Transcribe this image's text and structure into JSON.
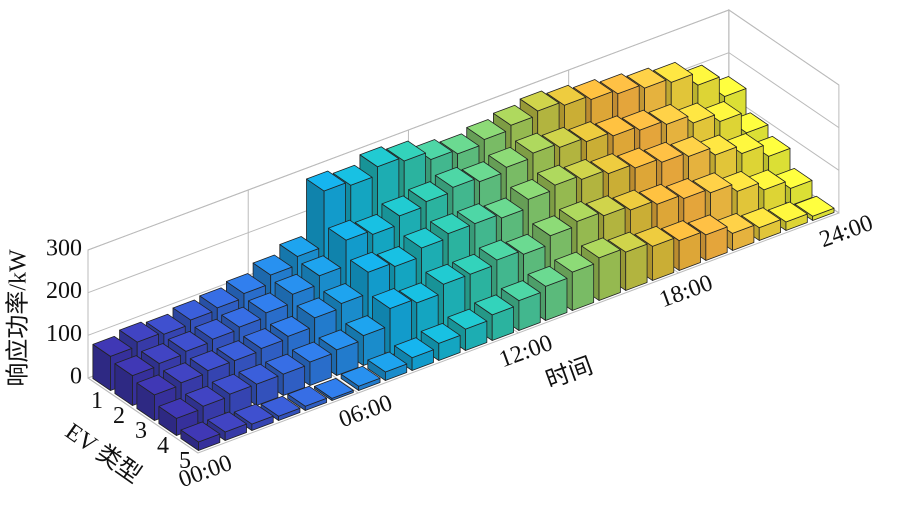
{
  "chart_data": {
    "type": "bar3d",
    "xlabel": "时间",
    "ylabel": "EV 类型",
    "zlabel": "响应功率/kW",
    "x": [
      0.5,
      1.5,
      2.5,
      3.5,
      4.5,
      5.5,
      6.5,
      7.5,
      8.5,
      9.5,
      10.5,
      11.5,
      12.5,
      13.5,
      14.5,
      15.5,
      16.5,
      17.5,
      18.5,
      19.5,
      20.5,
      21.5,
      22.5,
      23.5
    ],
    "xlim": [
      0,
      24
    ],
    "xticks": [
      {
        "value": 0,
        "label": "00:00"
      },
      {
        "value": 6,
        "label": "06:00"
      },
      {
        "value": 12,
        "label": "12:00"
      },
      {
        "value": 18,
        "label": "18:00"
      },
      {
        "value": 24,
        "label": "24:00"
      }
    ],
    "zlim": [
      0,
      300
    ],
    "zticks": [
      0,
      100,
      200,
      300
    ],
    "grid": true,
    "colors": [
      "#3b34a8",
      "#3c3fb5",
      "#3a4ac0",
      "#3758cb",
      "#3366d4",
      "#2d76dc",
      "#2586de",
      "#1c98dd",
      "#14a8dd",
      "#16b3d2",
      "#1fbcc2",
      "#2fc3ad",
      "#48c79a",
      "#63ca86",
      "#83cb6e",
      "#a2c957",
      "#c1c445",
      "#dcbd3a",
      "#f0b43c",
      "#f8b340",
      "#f9c243",
      "#f5d63e",
      "#f0e63a",
      "#eef23a"
    ],
    "series": [
      {
        "name": "1",
        "values": [
          80,
          90,
          85,
          95,
          100,
          110,
          130,
          150,
          280,
          270,
          290,
          280,
          260,
          250,
          260,
          270,
          280,
          270,
          260,
          250,
          240,
          230,
          200,
          150
        ]
      },
      {
        "name": "2",
        "values": [
          70,
          75,
          80,
          85,
          90,
          100,
          120,
          140,
          200,
          190,
          210,
          220,
          230,
          220,
          230,
          240,
          230,
          220,
          210,
          200,
          190,
          170,
          150,
          100
        ]
      },
      {
        "name": "3",
        "values": [
          60,
          65,
          70,
          70,
          75,
          80,
          100,
          110,
          160,
          150,
          170,
          180,
          180,
          170,
          190,
          200,
          190,
          180,
          170,
          160,
          150,
          130,
          110,
          80
        ]
      },
      {
        "name": "4",
        "values": [
          40,
          45,
          50,
          50,
          50,
          55,
          60,
          70,
          110,
          100,
          120,
          120,
          130,
          120,
          140,
          150,
          140,
          130,
          120,
          110,
          100,
          80,
          60,
          40
        ]
      },
      {
        "name": "5",
        "values": [
          20,
          20,
          15,
          10,
          10,
          5,
          10,
          20,
          30,
          40,
          50,
          60,
          70,
          80,
          90,
          100,
          90,
          80,
          70,
          60,
          40,
          30,
          20,
          10
        ]
      }
    ]
  }
}
